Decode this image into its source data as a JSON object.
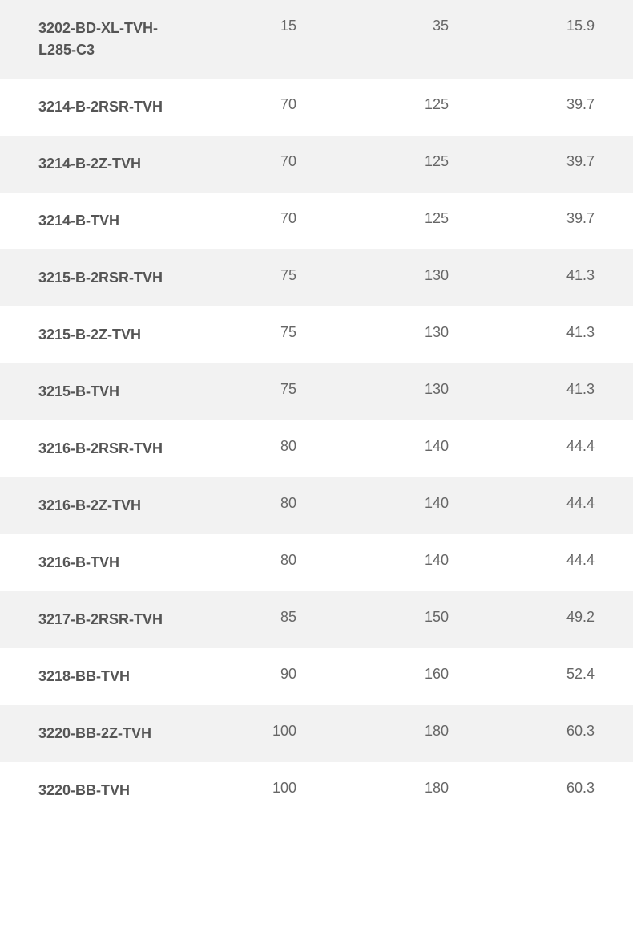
{
  "table": {
    "type": "table",
    "background_color": "#ffffff",
    "row_alt_color": "#f2f2f2",
    "text_color": "#666666",
    "label_color": "#555555",
    "font_size": 18,
    "label_font_weight": "bold",
    "rows": [
      {
        "label": "3202-BD-XL-TVH-L285-C3",
        "v1": "15",
        "v2": "35",
        "v3": "15.9"
      },
      {
        "label": "3214-B-2RSR-TVH",
        "v1": "70",
        "v2": "125",
        "v3": "39.7"
      },
      {
        "label": "3214-B-2Z-TVH",
        "v1": "70",
        "v2": "125",
        "v3": "39.7"
      },
      {
        "label": "3214-B-TVH",
        "v1": "70",
        "v2": "125",
        "v3": "39.7"
      },
      {
        "label": "3215-B-2RSR-TVH",
        "v1": "75",
        "v2": "130",
        "v3": "41.3"
      },
      {
        "label": "3215-B-2Z-TVH",
        "v1": "75",
        "v2": "130",
        "v3": "41.3"
      },
      {
        "label": "3215-B-TVH",
        "v1": "75",
        "v2": "130",
        "v3": "41.3"
      },
      {
        "label": "3216-B-2RSR-TVH",
        "v1": "80",
        "v2": "140",
        "v3": "44.4"
      },
      {
        "label": "3216-B-2Z-TVH",
        "v1": "80",
        "v2": "140",
        "v3": "44.4"
      },
      {
        "label": "3216-B-TVH",
        "v1": "80",
        "v2": "140",
        "v3": "44.4"
      },
      {
        "label": "3217-B-2RSR-TVH",
        "v1": "85",
        "v2": "150",
        "v3": "49.2"
      },
      {
        "label": "3218-BB-TVH",
        "v1": "90",
        "v2": "160",
        "v3": "52.4"
      },
      {
        "label": "3220-BB-2Z-TVH",
        "v1": "100",
        "v2": "180",
        "v3": "60.3"
      },
      {
        "label": "3220-BB-TVH",
        "v1": "100",
        "v2": "180",
        "v3": "60.3"
      }
    ]
  }
}
